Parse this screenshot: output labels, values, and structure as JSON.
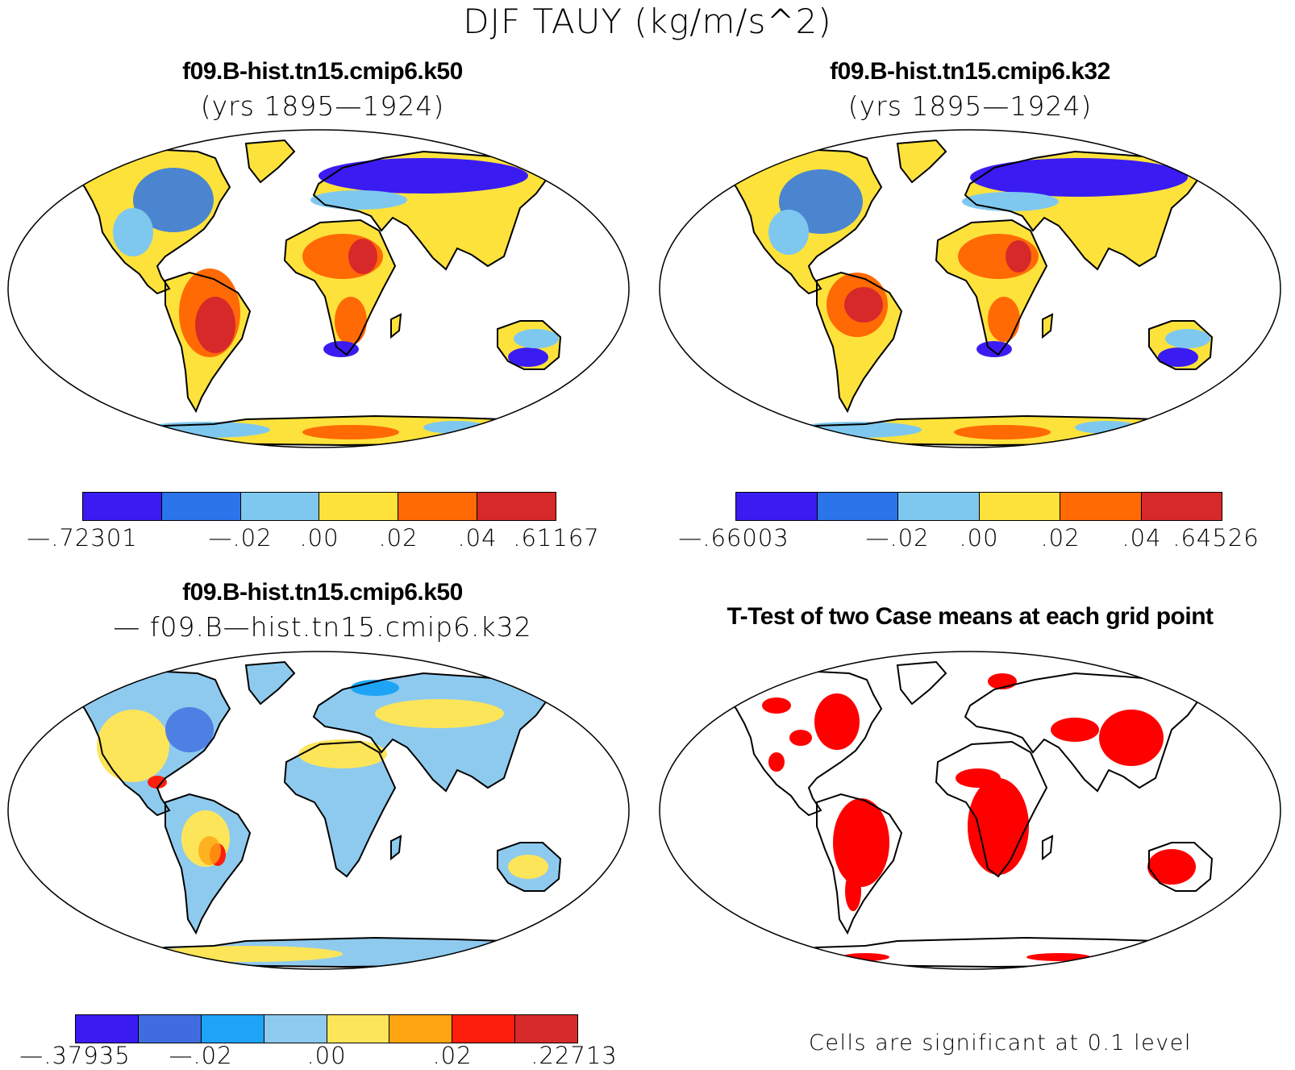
{
  "main_title": "DJF TAUY (kg/m/s^2)",
  "panels": [
    {
      "title": "f09.B-hist.tn15.cmip6.k50",
      "subtitle": "(yrs 1895—1924)"
    },
    {
      "title": "f09.B-hist.tn15.cmip6.k32",
      "subtitle": "(yrs 1895—1924)"
    },
    {
      "title": "f09.B-hist.tn15.cmip6.k50",
      "subtitle": "— f09.B—hist.tn15.cmip6.k32"
    },
    {
      "title": "T-Test of two Case means at each grid point",
      "subtitle": ""
    }
  ],
  "colorbars": [
    {
      "colors": [
        "#3a1cf2",
        "#2b74ea",
        "#7ec8f0",
        "#fde23c",
        "#ff6a05",
        "#d7292a"
      ],
      "labels": [
        "—.72301",
        "—.02",
        ".00",
        ".02",
        ".04",
        ".61167"
      ]
    },
    {
      "colors": [
        "#3a1cf2",
        "#2b74ea",
        "#7ec8f0",
        "#fde23c",
        "#ff6a05",
        "#d7292a"
      ],
      "labels": [
        "—.66003",
        "—.02",
        ".00",
        ".02",
        ".04",
        ".64526"
      ]
    },
    {
      "colors": [
        "#3a1cf2",
        "#3f6ce0",
        "#1ea4f6",
        "#8ecaee",
        "#fde55a",
        "#ffa511",
        "#fd1e0b",
        "#d72a2a"
      ],
      "labels": [
        "—.37935",
        "—.02",
        ".00",
        ".02",
        ".22713"
      ]
    }
  ],
  "footnote": "Cells are significant at 0.1 level",
  "colors": {
    "land_fill": "#fde23c",
    "ocean": "#ffffff",
    "significant": "#ff0000",
    "coast": "#000000"
  }
}
